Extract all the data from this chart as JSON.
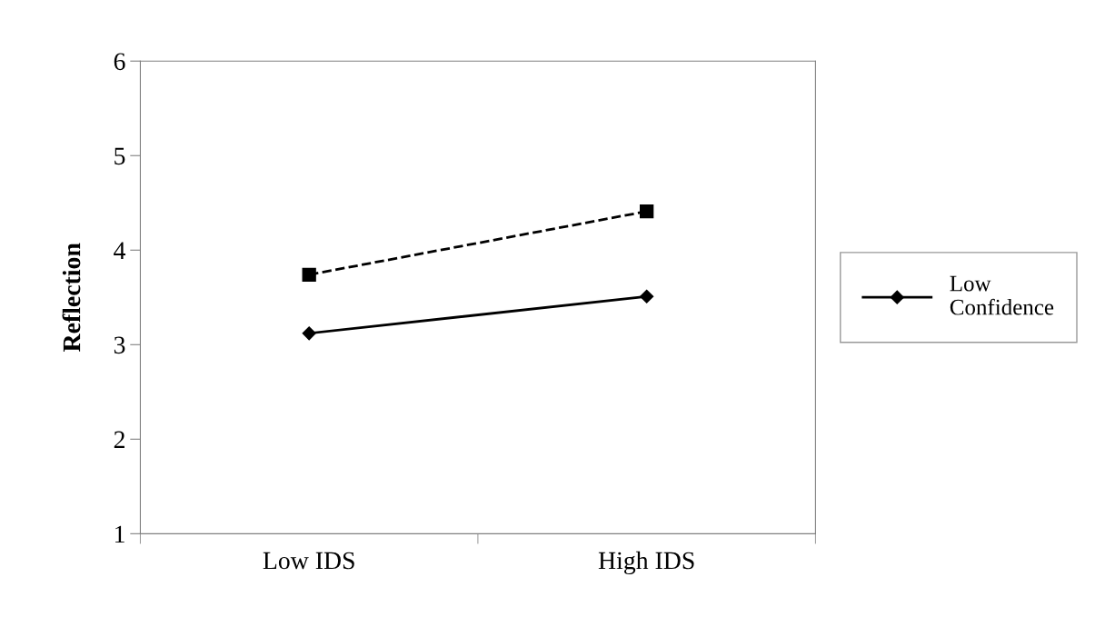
{
  "chart_data": {
    "type": "line",
    "ylabel": "Reflection",
    "categories": [
      "Low IDS",
      "High IDS"
    ],
    "ylim": [
      1,
      6
    ],
    "yticks": [
      1,
      2,
      3,
      4,
      5,
      6
    ],
    "grid": false,
    "legend": "right",
    "series": [
      {
        "color": "#000000",
        "values": [
          3.74,
          4.41
        ],
        "marker": "square",
        "line_style": "dashed"
      },
      {
        "name": "Low\nConfidence",
        "color": "#000000",
        "values": [
          3.12,
          3.51
        ],
        "marker": "diamond",
        "line_style": "solid"
      }
    ]
  }
}
